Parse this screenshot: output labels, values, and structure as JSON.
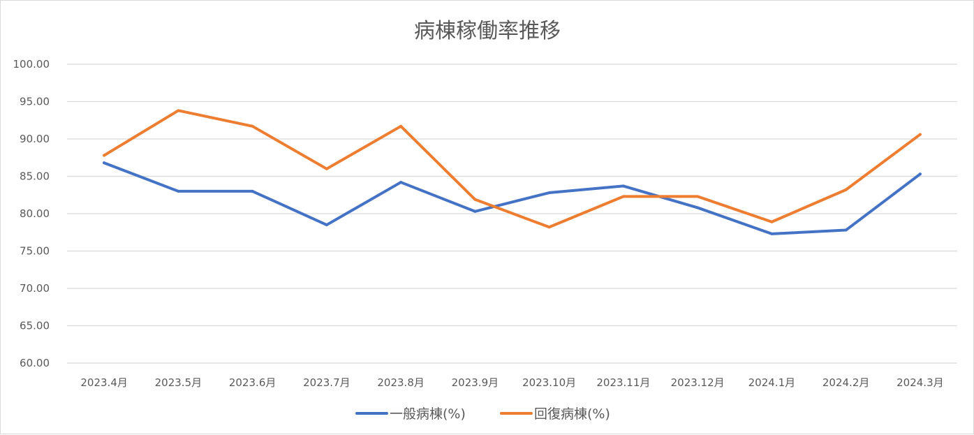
{
  "chart_data": {
    "type": "line",
    "title": "病棟稼働率推移",
    "xlabel": "",
    "ylabel": "",
    "categories": [
      "2023.4月",
      "2023.5月",
      "2023.6月",
      "2023.7月",
      "2023.8月",
      "2023.9月",
      "2023.10月",
      "2023.11月",
      "2023.12月",
      "2024.1月",
      "2024.2月",
      "2024.3月"
    ],
    "y_ticks": [
      "60.00",
      "65.00",
      "70.00",
      "75.00",
      "80.00",
      "85.00",
      "90.00",
      "95.00",
      "100.00"
    ],
    "ylim": [
      60,
      100
    ],
    "grid": true,
    "legend_position": "bottom",
    "series": [
      {
        "name": "一般病棟(%)",
        "color": "#4472c4",
        "values": [
          86.8,
          83.0,
          83.0,
          78.5,
          84.2,
          80.3,
          82.8,
          83.7,
          80.8,
          77.3,
          77.8,
          85.3
        ]
      },
      {
        "name": "回復病棟(%)",
        "color": "#ed7d31",
        "values": [
          87.8,
          93.8,
          91.7,
          86.0,
          91.7,
          81.9,
          78.2,
          82.3,
          82.3,
          78.9,
          83.2,
          90.6
        ]
      }
    ]
  }
}
